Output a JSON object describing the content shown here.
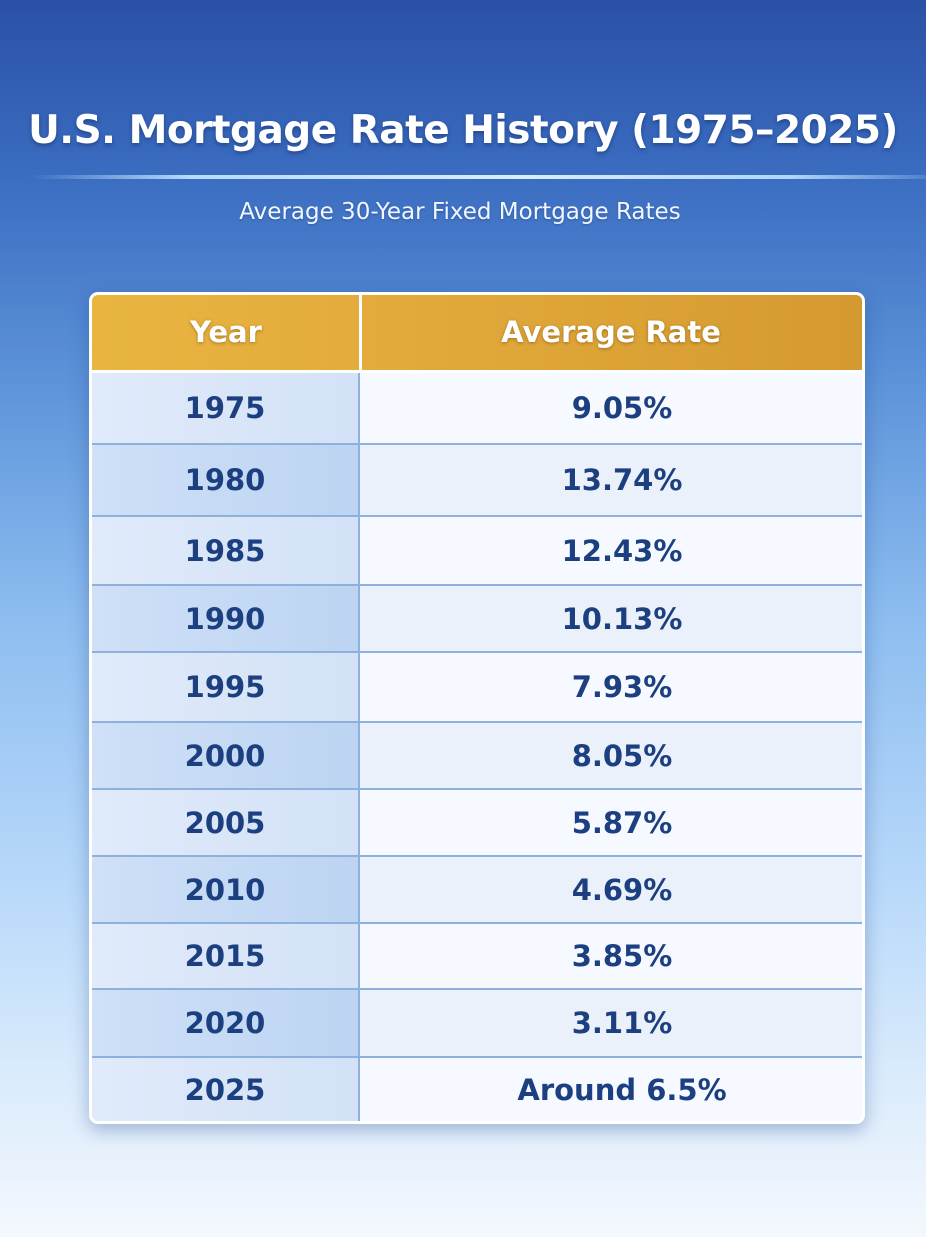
{
  "title": "U.S. Mortgage Rate History (1975–2025)",
  "subtitle": "Average 30-Year Fixed Mortgage Rates",
  "table": {
    "headers": {
      "year": "Year",
      "rate": "Average Rate"
    },
    "rows": [
      {
        "year": "1975",
        "rate": "9.05%"
      },
      {
        "year": "1980",
        "rate": "13.74%"
      },
      {
        "year": "1985",
        "rate": "12.43%"
      },
      {
        "year": "1990",
        "rate": "10.13%"
      },
      {
        "year": "1995",
        "rate": "7.93%"
      },
      {
        "year": "2000",
        "rate": "8.05%"
      },
      {
        "year": "2005",
        "rate": "5.87%"
      },
      {
        "year": "2010",
        "rate": "4.69%"
      },
      {
        "year": "2015",
        "rate": "3.85%"
      },
      {
        "year": "2020",
        "rate": "3.11%"
      },
      {
        "year": "2025",
        "rate": "Around 6.5%"
      }
    ]
  },
  "colors": {
    "header_gold": "#e0a73a",
    "text_navy": "#1c3f80",
    "background_top": "#2a51a6",
    "background_bottom": "#f4f8fd"
  }
}
